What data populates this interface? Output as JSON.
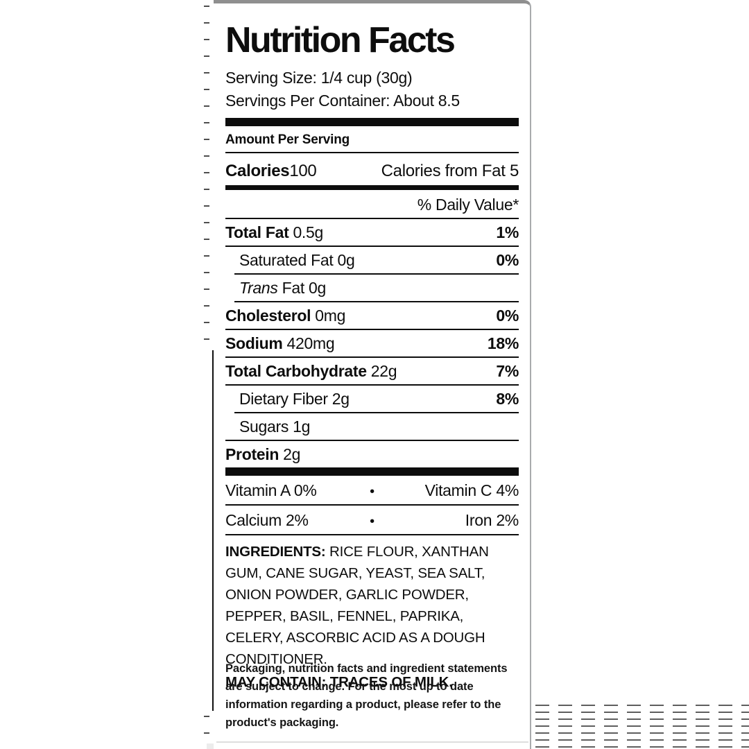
{
  "label": {
    "title": "Nutrition Facts",
    "serving_size": "Serving Size: 1/4 cup (30g)",
    "servings_per_container": "Servings Per Container: About 8.5",
    "amount_per_serving": "Amount Per Serving",
    "calories": {
      "label": "Calories",
      "value": "100",
      "from_fat": "Calories from Fat 5"
    },
    "daily_value_header": "% Daily Value*",
    "nutrients": [
      {
        "label": "Total Fat",
        "value": "0.5g",
        "dv": "1%",
        "bold": true,
        "indent": false,
        "italic": false,
        "sep": "full"
      },
      {
        "label": "Saturated Fat",
        "value": "0g",
        "dv": "0%",
        "bold": false,
        "indent": true,
        "italic": false,
        "sep": "indent"
      },
      {
        "label": "Trans",
        "value": "Fat 0g",
        "dv": "",
        "bold": false,
        "indent": true,
        "italic": true,
        "sep": "indent"
      },
      {
        "label": "Cholesterol",
        "value": "0mg",
        "dv": "0%",
        "bold": true,
        "indent": false,
        "italic": false,
        "sep": "full"
      },
      {
        "label": "Sodium",
        "value": "420mg",
        "dv": "18%",
        "bold": true,
        "indent": false,
        "italic": false,
        "sep": "full"
      },
      {
        "label": "Total Carbohydrate",
        "value": "22g",
        "dv": "7%",
        "bold": true,
        "indent": false,
        "italic": false,
        "sep": "full"
      },
      {
        "label": "Dietary Fiber",
        "value": "2g",
        "dv": "8%",
        "bold": false,
        "indent": true,
        "italic": false,
        "sep": "indent"
      },
      {
        "label": "Sugars",
        "value": "1g",
        "dv": "",
        "bold": false,
        "indent": true,
        "italic": false,
        "sep": "full"
      },
      {
        "label": "Protein",
        "value": "2g",
        "dv": "",
        "bold": true,
        "indent": false,
        "italic": false,
        "sep": "none"
      }
    ],
    "micronutrients": [
      {
        "left": "Vitamin A 0%",
        "separator": "•",
        "right": "Vitamin C 4%"
      },
      {
        "left": "Calcium 2%",
        "separator": "•",
        "right": "Iron 2%"
      }
    ],
    "ingredients_label": "INGREDIENTS:",
    "ingredients_text": "RICE FLOUR, XANTHAN GUM, CANE SUGAR, YEAST, SEA SALT, ONION POWDER, GARLIC POWDER, PEPPER, BASIL, FENNEL, PAPRIKA, CELERY, ASCORBIC ACID AS A DOUGH CONDITIONER.",
    "may_contain": "MAY CONTAIN: TRACES OF MILK.",
    "disclaimer": "Packaging, nutrition facts and ingredient statements are subject to change. For the most up to date information regarding a product, please refer to the product's packaging."
  },
  "colors": {
    "text": "#0d0d0d",
    "rule": "#0d0d0d",
    "card_top_edge": "#8f8f8f",
    "card_right_edge": "#a9abad",
    "scan_dash": "#4d4d4d"
  }
}
